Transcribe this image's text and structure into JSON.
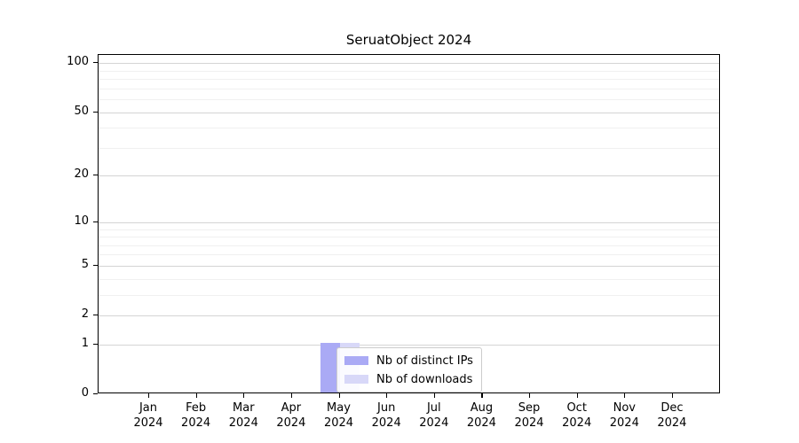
{
  "chart_data": {
    "type": "bar",
    "title": "SeruatObject 2024",
    "xlabel": "",
    "ylabel": "",
    "categories": [
      "Jan 2024",
      "Feb 2024",
      "Mar 2024",
      "Apr 2024",
      "May 2024",
      "Jun 2024",
      "Jul 2024",
      "Aug 2024",
      "Sep 2024",
      "Oct 2024",
      "Nov 2024",
      "Dec 2024"
    ],
    "x_tick_months": [
      "Jan",
      "Feb",
      "Mar",
      "Apr",
      "May",
      "Jun",
      "Jul",
      "Aug",
      "Sep",
      "Oct",
      "Nov",
      "Dec"
    ],
    "x_tick_year": "2024",
    "series": [
      {
        "name": "Nb of distinct IPs",
        "color": "#aaaaf5",
        "values": [
          0,
          0,
          0,
          0,
          1,
          0,
          0,
          0,
          0,
          0,
          0,
          0
        ]
      },
      {
        "name": "Nb of downloads",
        "color": "#d8d8f8",
        "values": [
          0,
          0,
          0,
          0,
          1,
          0,
          0,
          0,
          0,
          0,
          0,
          0
        ]
      }
    ],
    "y_scale": "log1p",
    "ylim": [
      0,
      112
    ],
    "y_major_ticks": [
      0,
      1,
      2,
      5,
      10,
      20,
      50,
      100
    ],
    "y_minor_ticks": [
      3,
      4,
      6,
      7,
      8,
      9,
      30,
      40,
      60,
      70,
      80,
      90
    ],
    "grid": "horizontal",
    "legend_position": "inside-lower-center",
    "colors": {
      "major_grid": "#d4d4d4",
      "minor_grid": "#f0f0f0",
      "axis": "#000000",
      "legend_border": "#cccccc"
    }
  }
}
